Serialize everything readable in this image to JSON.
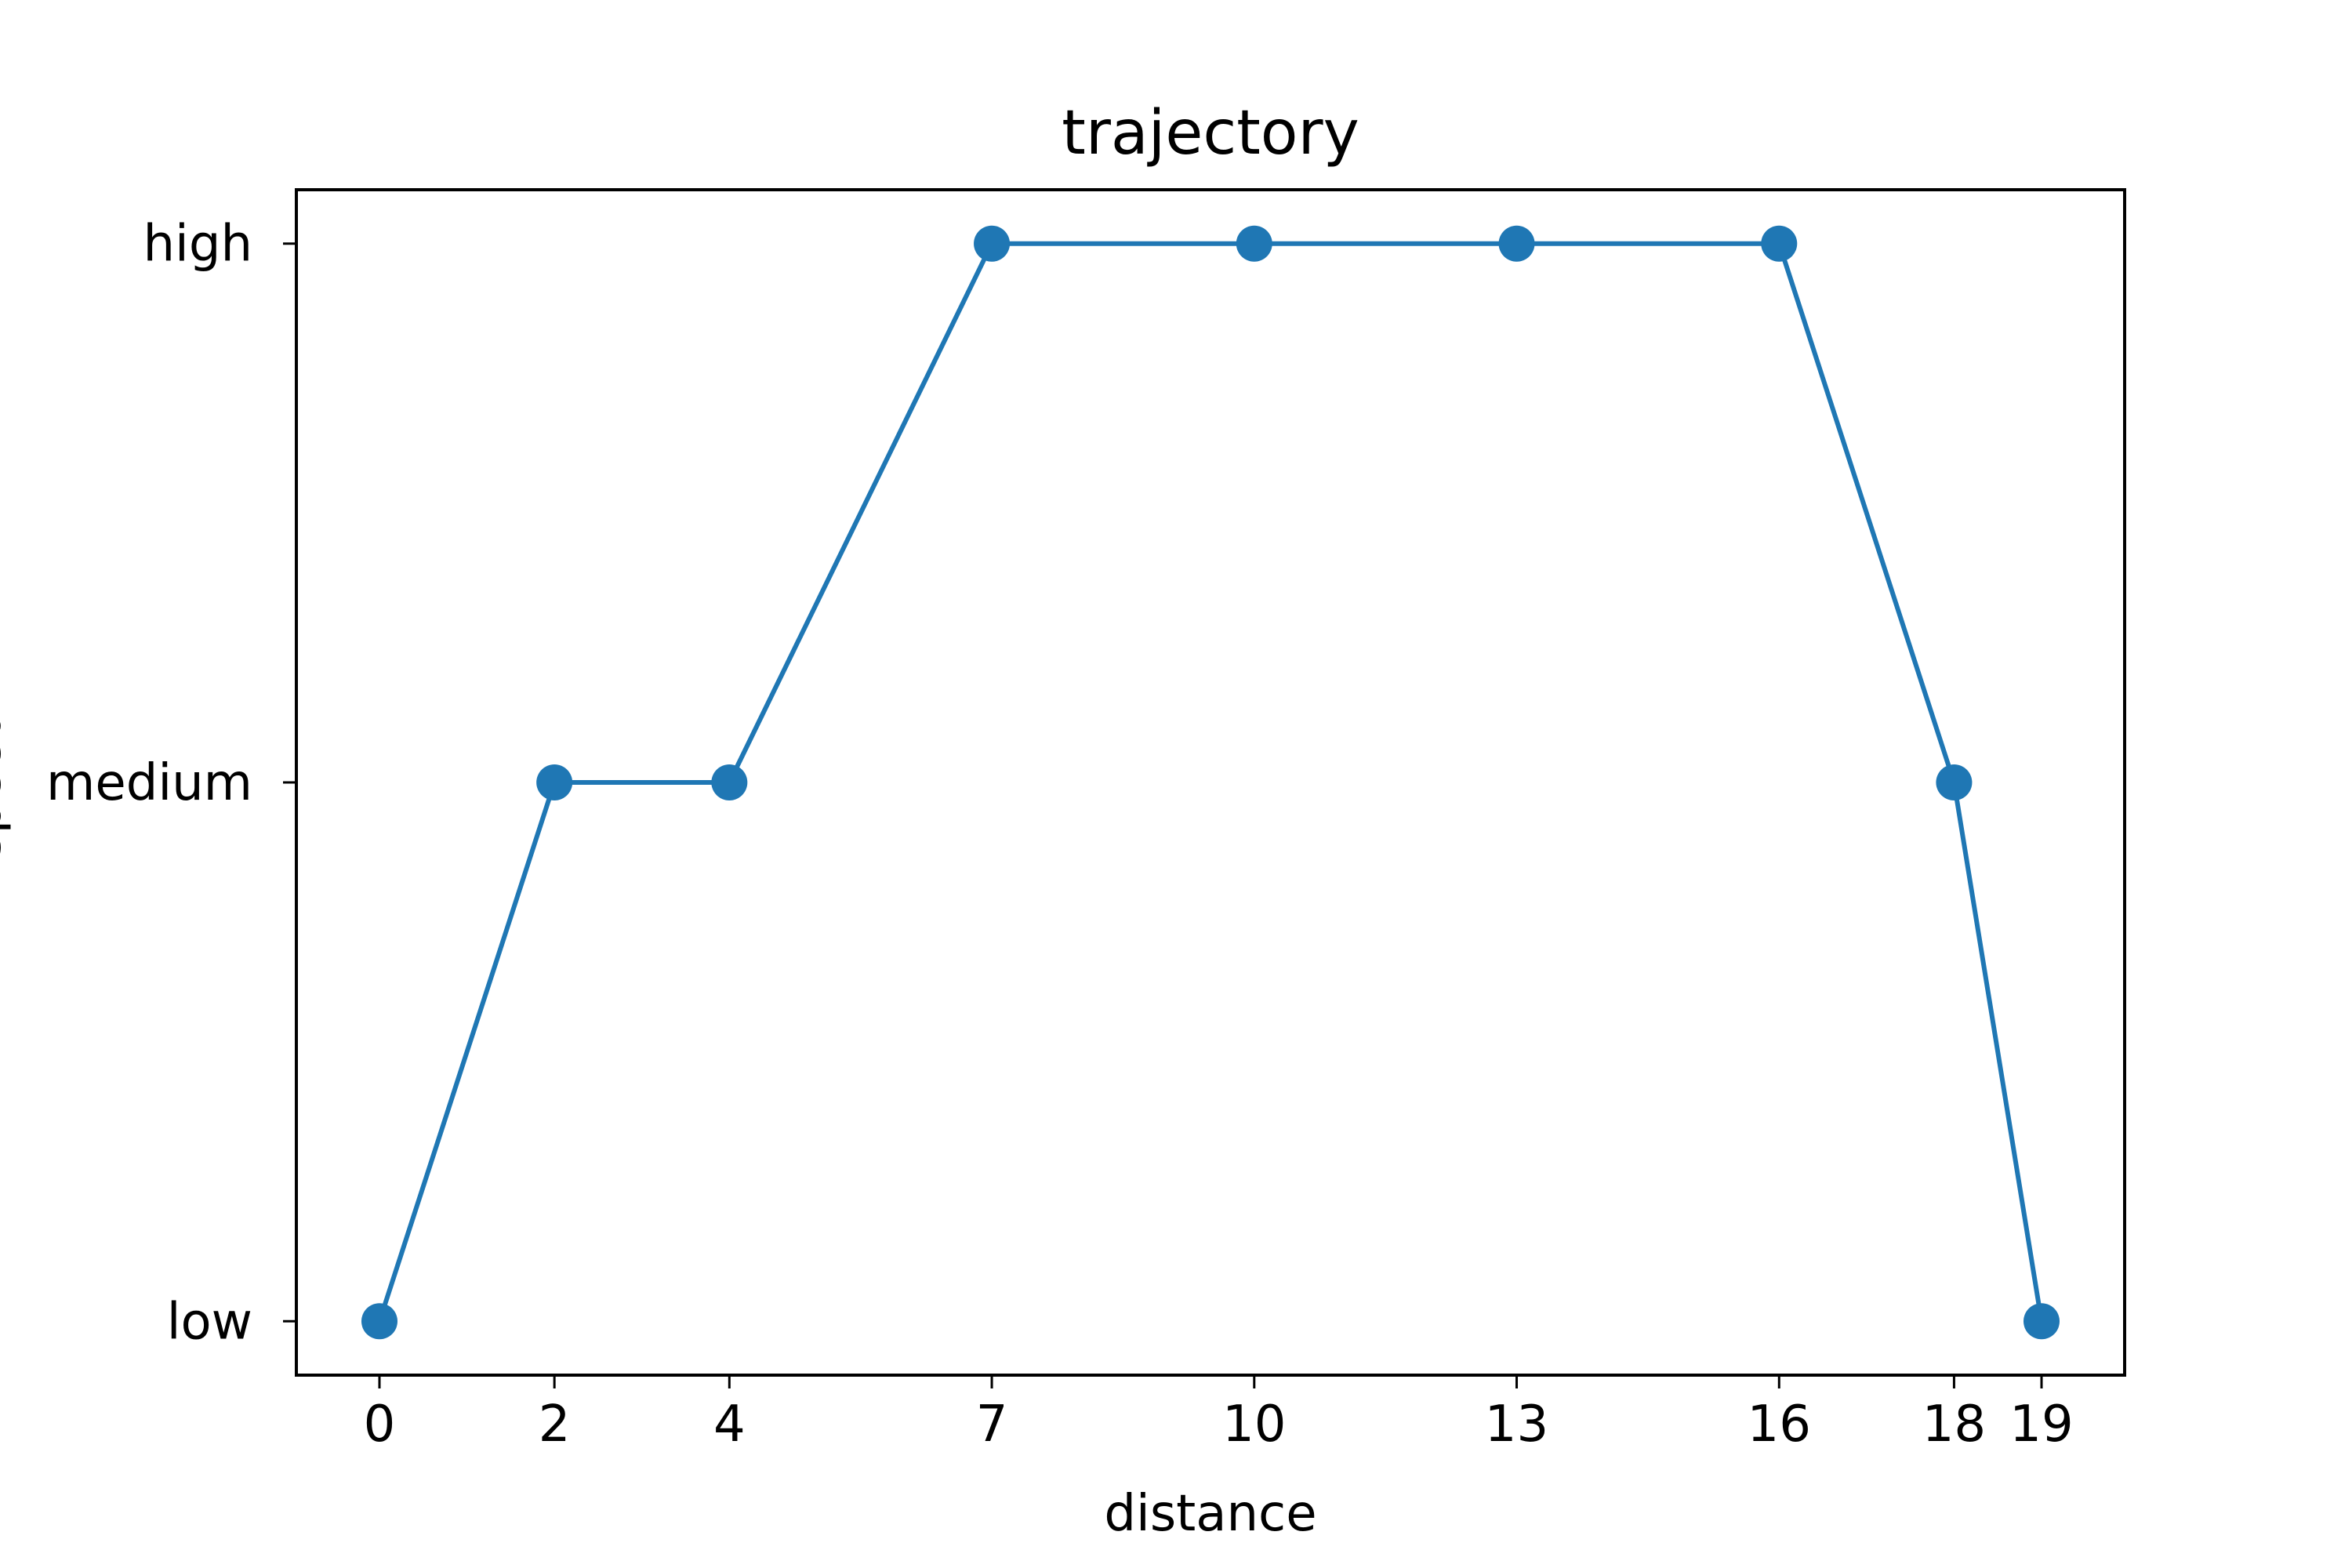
{
  "chart_data": {
    "type": "line",
    "title": "trajectory",
    "xlabel": "distance",
    "ylabel": "speed",
    "x": [
      0,
      2,
      4,
      7,
      10,
      13,
      16,
      18,
      19
    ],
    "y_categories": [
      "low",
      "medium",
      "high"
    ],
    "series": [
      {
        "values": [
          "low",
          "medium",
          "medium",
          "high",
          "high",
          "high",
          "high",
          "medium",
          "low"
        ],
        "color": "#1f77b4",
        "marker": "circle"
      }
    ],
    "xticks": [
      0,
      2,
      4,
      7,
      10,
      13,
      16,
      18,
      19
    ],
    "xlim": [
      -0.95,
      19.95
    ],
    "ylim": [
      -0.1,
      2.1
    ],
    "grid": false
  }
}
